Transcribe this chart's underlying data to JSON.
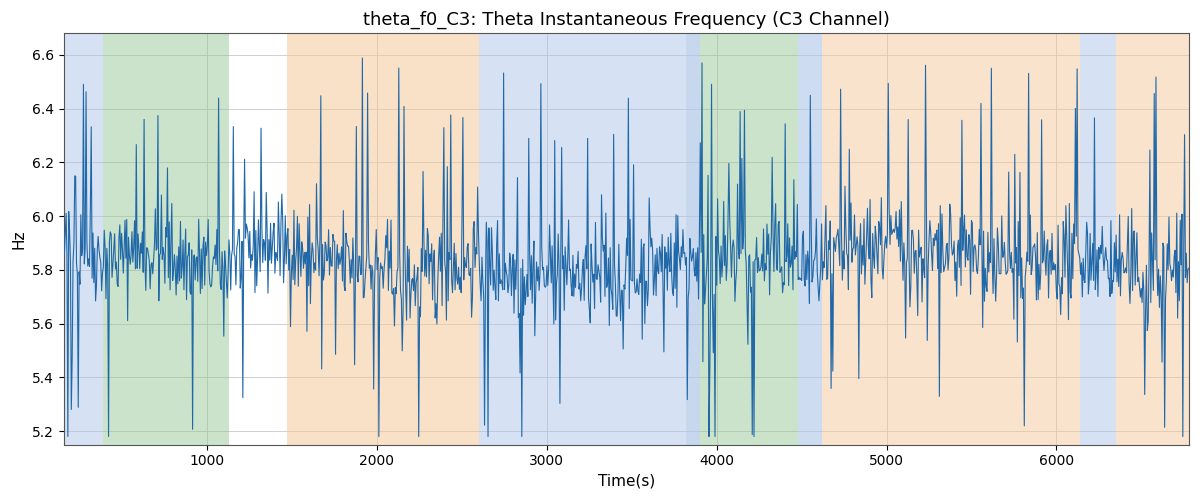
{
  "title": "theta_f0_C3: Theta Instantaneous Frequency (C3 Channel)",
  "xlabel": "Time(s)",
  "ylabel": "Hz",
  "xlim": [
    155,
    6780
  ],
  "ylim": [
    5.15,
    6.68
  ],
  "yticks": [
    5.2,
    5.4,
    5.6,
    5.8,
    6.0,
    6.2,
    6.4,
    6.6
  ],
  "xticks": [
    1000,
    2000,
    3000,
    4000,
    5000,
    6000
  ],
  "line_color": "#2068a8",
  "background_color": "#ffffff",
  "bands": [
    {
      "xmin": 155,
      "xmax": 390,
      "color": "#aec6e8",
      "alpha": 0.5
    },
    {
      "xmin": 390,
      "xmax": 1130,
      "color": "#98c898",
      "alpha": 0.5
    },
    {
      "xmin": 1130,
      "xmax": 1470,
      "color": "#ffffff",
      "alpha": 0.0
    },
    {
      "xmin": 1470,
      "xmax": 2230,
      "color": "#f5c99a",
      "alpha": 0.55
    },
    {
      "xmin": 2230,
      "xmax": 2600,
      "color": "#f5c99a",
      "alpha": 0.55
    },
    {
      "xmin": 2600,
      "xmax": 3820,
      "color": "#aec6e8",
      "alpha": 0.5
    },
    {
      "xmin": 3820,
      "xmax": 3900,
      "color": "#aec6e8",
      "alpha": 0.7
    },
    {
      "xmin": 3900,
      "xmax": 4480,
      "color": "#98c898",
      "alpha": 0.5
    },
    {
      "xmin": 4480,
      "xmax": 4620,
      "color": "#aec6e8",
      "alpha": 0.6
    },
    {
      "xmin": 4620,
      "xmax": 6140,
      "color": "#f5c99a",
      "alpha": 0.5
    },
    {
      "xmin": 6140,
      "xmax": 6350,
      "color": "#aec6e8",
      "alpha": 0.5
    },
    {
      "xmin": 6350,
      "xmax": 6780,
      "color": "#f5c99a",
      "alpha": 0.5
    }
  ],
  "seed": 42,
  "n_points": 1300,
  "line_width": 0.8,
  "title_fontsize": 13
}
